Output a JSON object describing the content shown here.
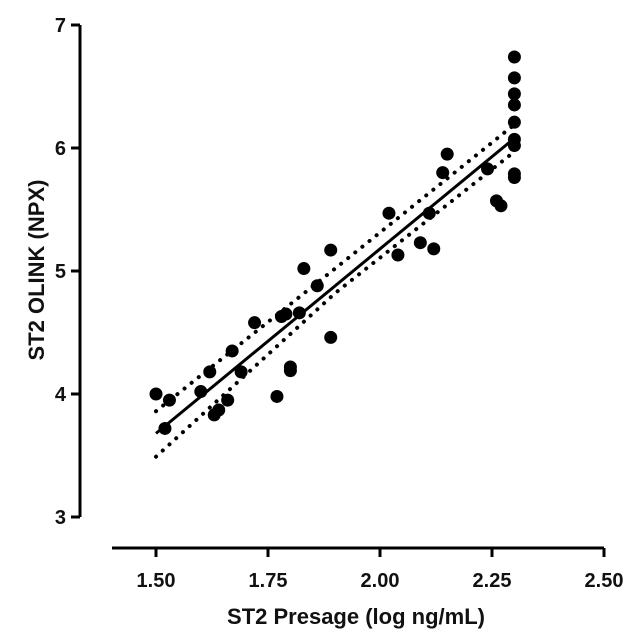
{
  "chart_data": {
    "type": "scatter",
    "title": "",
    "xlabel": "ST2 Presage (log ng/mL)",
    "ylabel": "ST2 OLINK (NPX)",
    "xlim": [
      1.3,
      2.5
    ],
    "ylim": [
      3,
      7
    ],
    "x_ticks": [
      1.5,
      1.75,
      2.0,
      2.25,
      2.5
    ],
    "x_tick_labels": [
      "1.50",
      "1.75",
      "2.00",
      "2.25",
      "2.50"
    ],
    "y_ticks": [
      3,
      4,
      5,
      6,
      7
    ],
    "y_tick_labels": [
      "3",
      "4",
      "5",
      "6",
      "7"
    ],
    "grid": false,
    "legend": false,
    "series": [
      {
        "type": "scatter",
        "points": [
          [
            1.5,
            4.0
          ],
          [
            1.52,
            3.72
          ],
          [
            1.53,
            3.95
          ],
          [
            1.6,
            4.02
          ],
          [
            1.62,
            4.18
          ],
          [
            1.63,
            3.83
          ],
          [
            1.64,
            3.87
          ],
          [
            1.66,
            3.95
          ],
          [
            1.67,
            4.35
          ],
          [
            1.69,
            4.18
          ],
          [
            1.72,
            4.58
          ],
          [
            1.77,
            3.98
          ],
          [
            1.78,
            4.63
          ],
          [
            1.79,
            4.65
          ],
          [
            1.8,
            4.22
          ],
          [
            1.8,
            4.19
          ],
          [
            1.82,
            4.66
          ],
          [
            1.83,
            5.02
          ],
          [
            1.86,
            4.88
          ],
          [
            1.89,
            5.17
          ],
          [
            1.89,
            4.46
          ],
          [
            2.02,
            5.47
          ],
          [
            2.04,
            5.13
          ],
          [
            2.09,
            5.23
          ],
          [
            2.11,
            5.47
          ],
          [
            2.12,
            5.18
          ],
          [
            2.14,
            5.8
          ],
          [
            2.15,
            5.95
          ],
          [
            2.24,
            5.83
          ],
          [
            2.26,
            5.57
          ],
          [
            2.27,
            5.53
          ],
          [
            2.3,
            6.74
          ],
          [
            2.3,
            6.57
          ],
          [
            2.3,
            6.44
          ],
          [
            2.3,
            6.35
          ],
          [
            2.3,
            6.21
          ],
          [
            2.3,
            6.07
          ],
          [
            2.3,
            6.02
          ],
          [
            2.3,
            5.79
          ],
          [
            2.3,
            5.76
          ]
        ]
      },
      {
        "type": "line",
        "style": "solid",
        "points": [
          [
            1.5,
            3.68
          ],
          [
            2.3,
            6.08
          ]
        ]
      },
      {
        "type": "line",
        "style": "dotted",
        "points": [
          [
            1.5,
            3.86
          ],
          [
            1.9,
            5.02
          ],
          [
            2.3,
            6.19
          ]
        ]
      },
      {
        "type": "line",
        "style": "dotted",
        "points": [
          [
            1.5,
            3.49
          ],
          [
            1.9,
            4.82
          ],
          [
            2.3,
            5.97
          ]
        ]
      }
    ],
    "colors": {
      "marker": "#000000",
      "line": "#000000",
      "axis": "#000000"
    }
  }
}
